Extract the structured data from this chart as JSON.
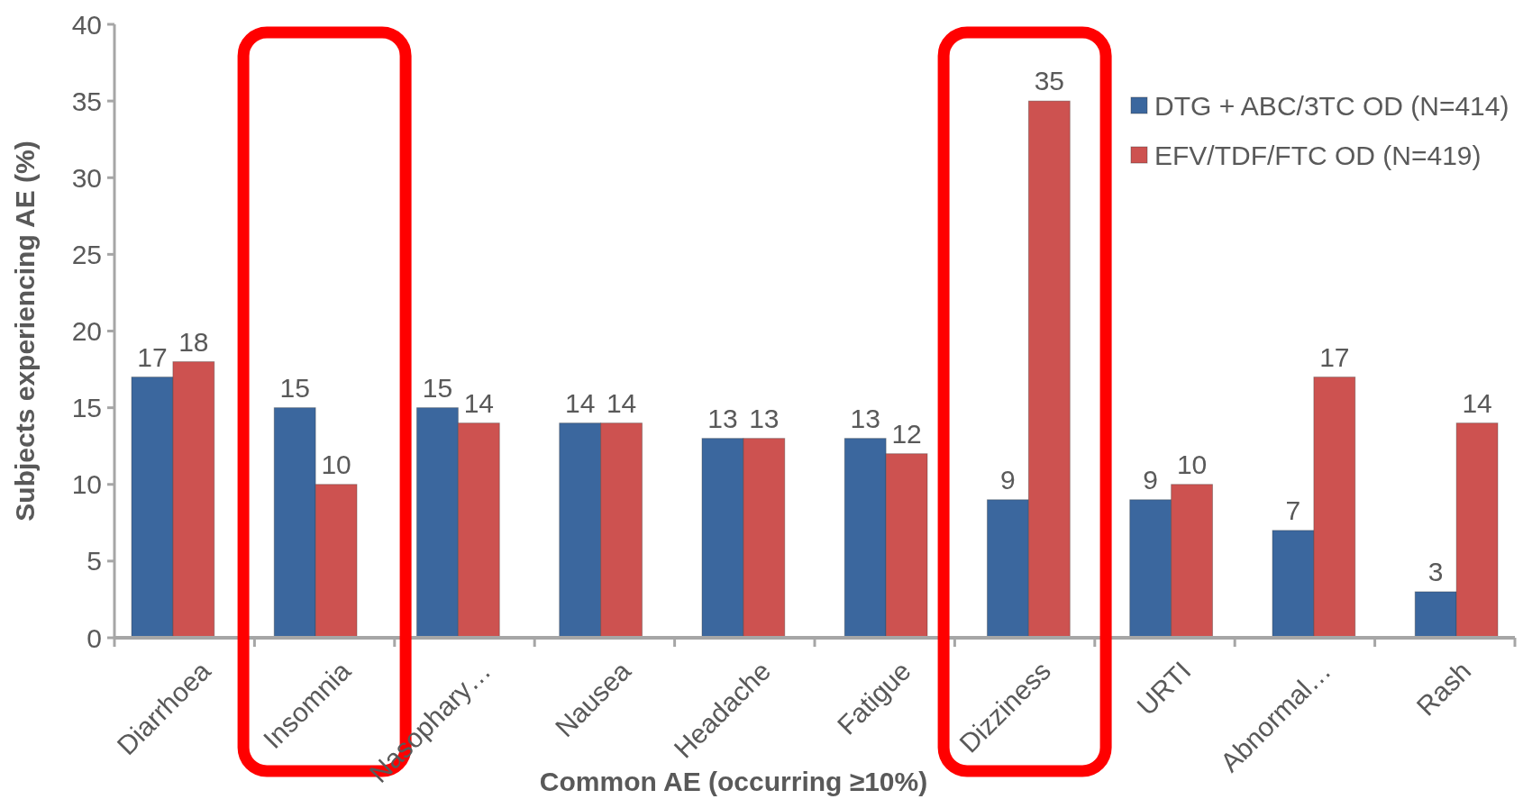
{
  "chart_data": {
    "type": "bar",
    "xlabel": "Common AE (occurring ≥10%)",
    "ylabel": "Subjects experiencing AE (%)",
    "categories": [
      "Diarrhoea",
      "Insomnia",
      "Nasophary…",
      "Nausea",
      "Headache",
      "Fatigue",
      "Dizziness",
      "URTI",
      "Abnormal…",
      "Rash"
    ],
    "series": [
      {
        "name": "DTG + ABC/3TC OD (N=414)",
        "color": "#3b679e",
        "values": [
          17,
          15,
          15,
          14,
          13,
          13,
          9,
          9,
          7,
          3
        ]
      },
      {
        "name": "EFV/TDF/FTC OD (N=419)",
        "color": "#cd5250",
        "values": [
          18,
          10,
          14,
          14,
          13,
          12,
          35,
          10,
          17,
          14
        ]
      }
    ],
    "ylim": [
      0,
      40
    ],
    "yticks": [
      0,
      5,
      10,
      15,
      20,
      25,
      30,
      35,
      40
    ],
    "grid": false,
    "legend": "top right",
    "data_labels": true
  }
}
